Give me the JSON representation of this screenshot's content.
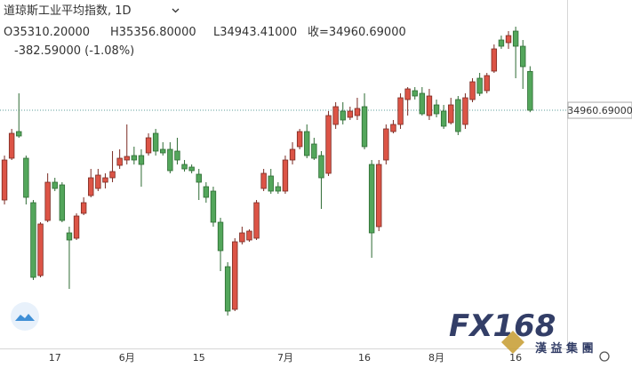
{
  "chart_data": {
    "type": "candlestick",
    "header": {
      "title": "道琼斯工业平均指数, 1D",
      "open": "O35310.20000",
      "high": "H35356.80000",
      "low": "L34943.41000",
      "close": "收=34960.69000",
      "change": "-382.59000 (-1.08%)"
    },
    "categories": [
      null,
      null,
      null,
      null,
      null,
      null,
      null,
      "17",
      null,
      null,
      null,
      null,
      null,
      null,
      null,
      null,
      null,
      "6月",
      null,
      null,
      null,
      null,
      null,
      null,
      null,
      null,
      null,
      "15",
      null,
      null,
      null,
      null,
      null,
      null,
      null,
      null,
      null,
      null,
      null,
      "7月",
      null,
      null,
      null,
      null,
      null,
      null,
      null,
      null,
      null,
      null,
      "16",
      null,
      null,
      null,
      null,
      null,
      null,
      null,
      null,
      null,
      "8月",
      null,
      null,
      null,
      null,
      null,
      null,
      null,
      null,
      null,
      null,
      "16",
      null,
      null
    ],
    "open": [
      34153,
      34529,
      34769,
      34529,
      34129,
      33473,
      33969,
      34313,
      34289,
      33857,
      33809,
      34033,
      34193,
      34257,
      34313,
      34353,
      34465,
      34513,
      34553,
      34553,
      34577,
      34753,
      34609,
      34609,
      34593,
      34473,
      34449,
      34385,
      34273,
      34233,
      33953,
      33553,
      33169,
      33777,
      33793,
      33809,
      34257,
      34369,
      34273,
      34233,
      34513,
      34633,
      34769,
      34657,
      34553,
      34393,
      34833,
      34953,
      34897,
      34913,
      34993,
      34473,
      33913,
      34513,
      34769,
      34833,
      35057,
      35137,
      35113,
      34913,
      35009,
      34953,
      34849,
      35057,
      34833,
      35057,
      35249,
      35137,
      35313,
      35593,
      35569,
      35673,
      35537,
      35310.2
    ],
    "high": [
      34553,
      34793,
      35113,
      34553,
      34153,
      33953,
      34393,
      34353,
      34313,
      33913,
      34033,
      34177,
      34433,
      34433,
      34393,
      34593,
      34609,
      34833,
      34633,
      34609,
      34753,
      34793,
      34673,
      34673,
      34713,
      34513,
      34473,
      34433,
      34313,
      34273,
      33993,
      33593,
      33809,
      33913,
      33889,
      34153,
      34433,
      34433,
      34313,
      34553,
      34673,
      34793,
      34833,
      34713,
      34593,
      34953,
      35033,
      35033,
      34993,
      35073,
      35113,
      34513,
      34513,
      34833,
      34873,
      35113,
      35169,
      35169,
      35169,
      35153,
      35057,
      35009,
      35073,
      35089,
      35113,
      35249,
      35297,
      35297,
      35553,
      35633,
      35673,
      35713,
      35593,
      35356.8
    ],
    "low": [
      34113,
      34513,
      34713,
      34113,
      33433,
      33457,
      33953,
      34233,
      33953,
      33353,
      33793,
      34017,
      34177,
      34233,
      34257,
      34313,
      34433,
      34473,
      34473,
      34273,
      34553,
      34553,
      34553,
      34393,
      34473,
      34409,
      34393,
      34153,
      34129,
      33913,
      33513,
      33113,
      33153,
      33753,
      33777,
      33793,
      34233,
      34209,
      34209,
      34209,
      34473,
      34609,
      34529,
      34513,
      34073,
      34369,
      34793,
      34833,
      34873,
      34873,
      34609,
      33633,
      33873,
      34473,
      34753,
      34793,
      34913,
      35057,
      34913,
      34873,
      34897,
      34793,
      34833,
      34737,
      34793,
      35033,
      35089,
      35113,
      35297,
      35513,
      35513,
      35249,
      35153,
      34943.41
    ],
    "close": [
      34513,
      34753,
      34729,
      34177,
      33457,
      33937,
      34313,
      34257,
      33969,
      33793,
      34009,
      34129,
      34353,
      34377,
      34353,
      34409,
      34529,
      34545,
      34513,
      34473,
      34713,
      34593,
      34577,
      34417,
      34513,
      34433,
      34417,
      34313,
      34177,
      33953,
      33697,
      33153,
      33777,
      33857,
      33873,
      34129,
      34393,
      34233,
      34233,
      34513,
      34609,
      34769,
      34553,
      34529,
      34353,
      34913,
      34993,
      34873,
      34953,
      34977,
      34633,
      33857,
      34473,
      34793,
      34833,
      35073,
      35153,
      35089,
      34929,
      35089,
      34929,
      34817,
      35009,
      34769,
      35073,
      35217,
      35113,
      35273,
      35513,
      35537,
      35633,
      35537,
      35353,
      34960.69
    ],
    "up_color": "#dc5446",
    "down_color": "#53a65b",
    "ylim": [
      32833,
      35953
    ],
    "last_price": {
      "value": 34960.69,
      "label": "34960.69000"
    },
    "watermark": {
      "logo": "FX168",
      "company": "漢 益 集 團"
    }
  }
}
